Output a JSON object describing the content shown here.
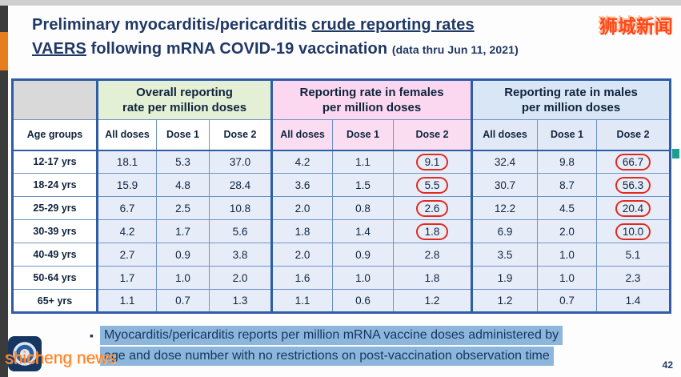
{
  "colors": {
    "accent_navy": "#1F3864",
    "table_border_blue": "#2E5DA6",
    "overall_header_green": "#E4F0D5",
    "female_header_pink": "#FBD7F0",
    "male_header_blue": "#D9E6F5",
    "highlight_blue": "#8CB6DB",
    "circle_red": "#E02B20",
    "watermark_orange": "#FF4719",
    "sidebar_accent_orange": "#E87D1E"
  },
  "watermarks": {
    "top_right": "狮城新闻",
    "bottom_left": "shicheng news"
  },
  "title": {
    "part1": "Preliminary myocarditis/pericarditis ",
    "part2_underlined": "crude reporting rates",
    "part3_underlined": "VAERS",
    "part4": " following mRNA COVID-19 vaccination ",
    "date_note": "(data thru Jun 11, 2021)"
  },
  "table": {
    "age_header": "Age groups",
    "groups": [
      {
        "label": "Overall reporting\nrate per million doses",
        "color": "#E4F0D5"
      },
      {
        "label": "Reporting rate in females\nper million doses",
        "color": "#FBD7F0"
      },
      {
        "label": "Reporting rate in males\nper million doses",
        "color": "#D9E6F5"
      }
    ],
    "sub_headers": [
      "All doses",
      "Dose 1",
      "Dose 2"
    ],
    "rows": [
      {
        "age": "12-17 yrs",
        "overall": [
          "18.1",
          "5.3",
          "37.0"
        ],
        "female": [
          "4.2",
          "1.1",
          "9.1"
        ],
        "male": [
          "32.4",
          "9.8",
          "66.7"
        ],
        "circled": [
          "female",
          "male"
        ]
      },
      {
        "age": "18-24 yrs",
        "overall": [
          "15.9",
          "4.8",
          "28.4"
        ],
        "female": [
          "3.6",
          "1.5",
          "5.5"
        ],
        "male": [
          "30.7",
          "8.7",
          "56.3"
        ],
        "circled": [
          "female",
          "male"
        ]
      },
      {
        "age": "25-29 yrs",
        "overall": [
          "6.7",
          "2.5",
          "10.8"
        ],
        "female": [
          "2.0",
          "0.8",
          "2.6"
        ],
        "male": [
          "12.2",
          "4.5",
          "20.4"
        ],
        "circled": [
          "female",
          "male"
        ]
      },
      {
        "age": "30-39 yrs",
        "overall": [
          "4.2",
          "1.7",
          "5.6"
        ],
        "female": [
          "1.8",
          "1.4",
          "1.8"
        ],
        "male": [
          "6.9",
          "2.0",
          "10.0"
        ],
        "circled": [
          "female",
          "male"
        ]
      },
      {
        "age": "40-49 yrs",
        "overall": [
          "2.7",
          "0.9",
          "3.8"
        ],
        "female": [
          "2.0",
          "0.9",
          "2.8"
        ],
        "male": [
          "3.5",
          "1.0",
          "5.1"
        ],
        "circled": []
      },
      {
        "age": "50-64 yrs",
        "overall": [
          "1.7",
          "1.0",
          "2.0"
        ],
        "female": [
          "1.6",
          "1.0",
          "1.8"
        ],
        "male": [
          "1.9",
          "1.0",
          "2.3"
        ],
        "circled": []
      },
      {
        "age": "65+ yrs",
        "overall": [
          "1.1",
          "0.7",
          "1.3"
        ],
        "female": [
          "1.1",
          "0.6",
          "1.2"
        ],
        "male": [
          "1.2",
          "0.7",
          "1.4"
        ],
        "circled": []
      }
    ]
  },
  "footnote": {
    "bullet": "▪",
    "line1": "Myocarditis/pericarditis reports per million mRNA vaccine doses administered by",
    "line2": "age and dose number with no restrictions on post-vaccination observation time"
  },
  "page_number": "42"
}
